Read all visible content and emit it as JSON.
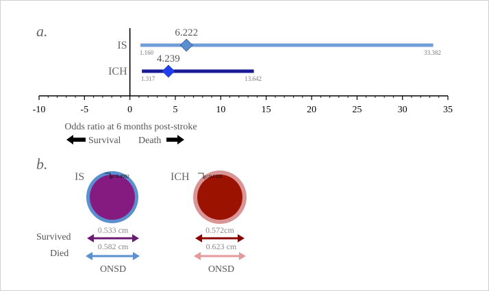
{
  "chart_data": [
    {
      "type": "forest",
      "panel_label": "a.",
      "xlabel": "Odds ratio at 6 months post-stroke",
      "xlim": [
        -10,
        35
      ],
      "xticks": [
        -10,
        -5,
        0,
        5,
        10,
        15,
        20,
        25,
        30,
        35
      ],
      "reference_line": 0,
      "series": [
        {
          "name": "IS",
          "point": 6.222,
          "lower": 1.16,
          "upper": 33.382,
          "point_label": "6.222",
          "lower_label": "1.160",
          "upper_label": "33.382",
          "color": "#6f9fd6",
          "marker_color": "#5b8fcf"
        },
        {
          "name": "ICH",
          "point": 4.239,
          "lower": 1.317,
          "upper": 13.642,
          "point_label": "4.239",
          "lower_label": "1.317",
          "upper_label": "13.642",
          "color": "#1a1a96",
          "marker_color": "#1f3ff0"
        }
      ],
      "arrows": {
        "left_label": "Survival",
        "right_label": "Death"
      }
    },
    {
      "type": "diagram",
      "panel_label": "b.",
      "groups": [
        {
          "name": "IS",
          "p_label": "p=0.0092",
          "survived_label": "0.533 cm",
          "died_label": "0.582 cm",
          "inner_color": "#851b80",
          "ring_color": "#5b8fcf",
          "survived_arrow_color": "#6a1a70",
          "died_arrow_color": "#5b8fcf",
          "footer": "ONSD"
        },
        {
          "name": "ICH",
          "p_label": "p=0.0155",
          "survived_label": "0.572cm",
          "died_label": "0.623 cm",
          "inner_color": "#9b1200",
          "ring_color": "#d99595",
          "survived_arrow_color": "#8b0000",
          "died_arrow_color": "#e39a9a",
          "footer": "ONSD"
        }
      ],
      "row_labels": {
        "survived": "Survived",
        "died": "Died"
      }
    }
  ]
}
